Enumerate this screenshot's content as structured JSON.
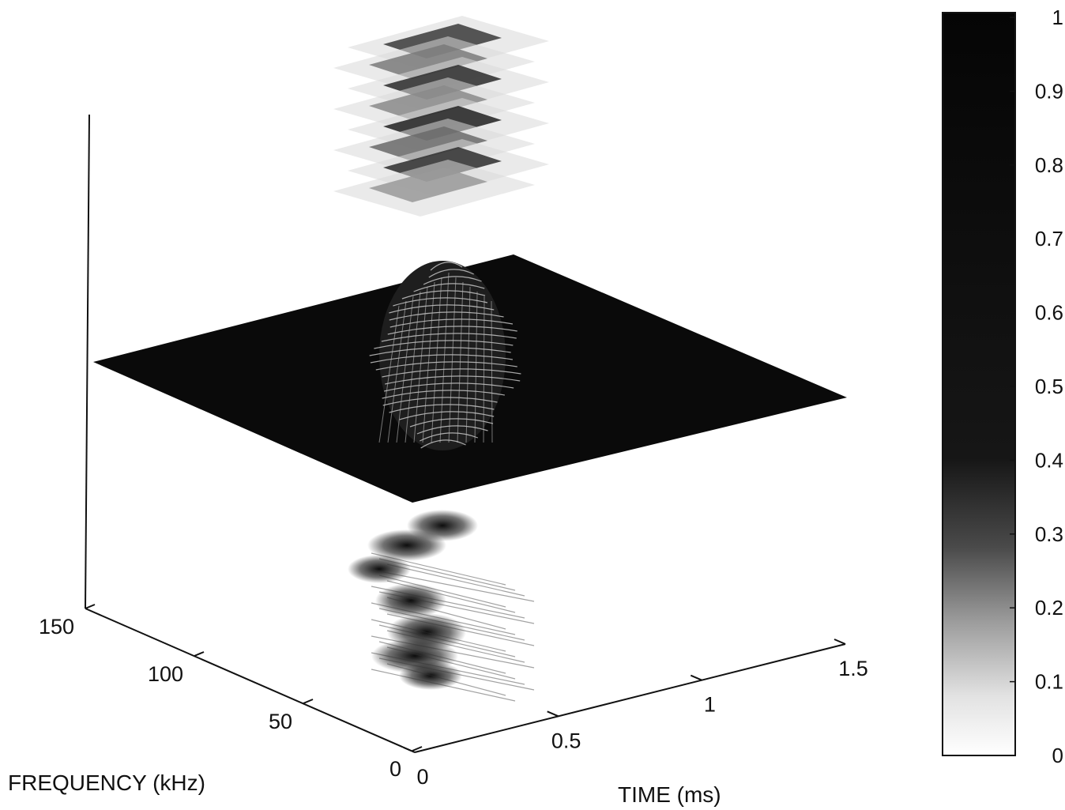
{
  "chart_data": {
    "type": "surface",
    "xlabel": "TIME (ms)",
    "ylabel": "FREQUENCY (kHz)",
    "x_ticks": [
      "0",
      "0.5",
      "1",
      "1.5"
    ],
    "y_ticks": [
      "0",
      "50",
      "100",
      "150"
    ],
    "xlim": [
      0,
      1.5
    ],
    "ylim": [
      0,
      150
    ],
    "colorbar": {
      "ticks": [
        "0",
        "0.1",
        "0.2",
        "0.3",
        "0.4",
        "0.5",
        "0.6",
        "0.7",
        "0.8",
        "0.9",
        "1"
      ],
      "range": [
        0,
        1
      ],
      "colormap": "gray-inverted"
    },
    "layers": [
      "top stacked slices",
      "middle surface plane",
      "bottom time-frequency projection"
    ],
    "colors": {
      "ink": "#111111",
      "plane": "#0a0a0a",
      "background": "#ffffff"
    }
  }
}
